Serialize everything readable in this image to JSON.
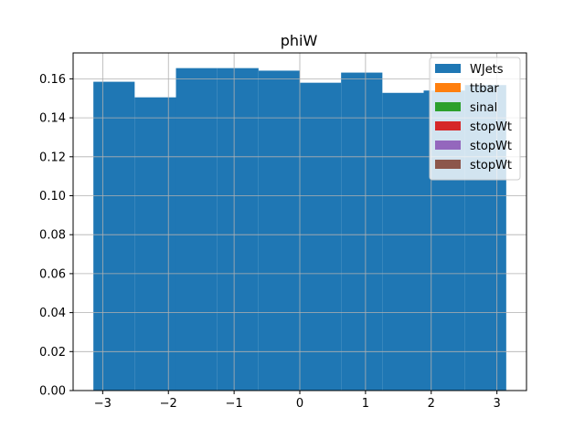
{
  "chart_data": {
    "type": "bar",
    "title": "phiW",
    "xlabel": "",
    "ylabel": "",
    "xlim": [
      -3.45,
      3.45
    ],
    "ylim": [
      0.0,
      0.1733
    ],
    "grid": true,
    "legend_position": "top-right",
    "bin_edges": [
      -3.1416,
      -2.5133,
      -1.885,
      -1.2566,
      -0.6283,
      0.0,
      0.6283,
      1.2566,
      1.885,
      2.5133,
      3.1416
    ],
    "x_ticks": [
      -3,
      -2,
      -1,
      0,
      1,
      2,
      3
    ],
    "x_tick_labels": [
      "−3",
      "−2",
      "−1",
      "0",
      "1",
      "2",
      "3"
    ],
    "y_ticks": [
      0.0,
      0.02,
      0.04,
      0.06,
      0.08,
      0.1,
      0.12,
      0.14,
      0.16
    ],
    "y_tick_labels": [
      "0.00",
      "0.02",
      "0.04",
      "0.06",
      "0.08",
      "0.10",
      "0.12",
      "0.14",
      "0.16"
    ],
    "series": [
      {
        "name": "WJets",
        "color": "#1f77b4",
        "values": [
          0.1585,
          0.1505,
          0.1655,
          0.1655,
          0.1642,
          0.158,
          0.1632,
          0.1528,
          0.154,
          0.1568
        ]
      },
      {
        "name": "ttbar",
        "color": "#ff7f0e",
        "values": []
      },
      {
        "name": "sinal",
        "color": "#2ca02c",
        "values": []
      },
      {
        "name": "stopWt",
        "color": "#d62728",
        "values": []
      },
      {
        "name": "stopWt",
        "color": "#9467bd",
        "values": []
      },
      {
        "name": "stopWt",
        "color": "#8c564b",
        "values": []
      }
    ]
  }
}
